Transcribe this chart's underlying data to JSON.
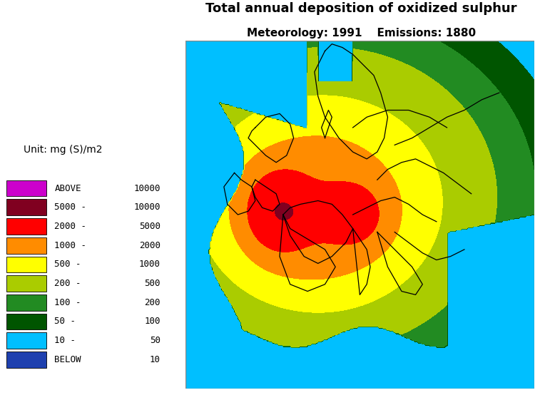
{
  "title_line1": "Total annual deposition of oxidized sulphur",
  "title_line2": "Meteorology: 1991    Emissions: 1880",
  "unit_text": "Unit: mg (S)/m2",
  "legend_colors": [
    "#CC00CC",
    "#800020",
    "#FF0000",
    "#FF8C00",
    "#FFFF00",
    "#AACC00",
    "#228B22",
    "#005500",
    "#00BFFF",
    "#1E40AF"
  ],
  "legend_labels_left": [
    "ABOVE",
    "5000 -",
    "2000 -",
    "1000 -",
    "500 -",
    "200 -",
    "100 -",
    "50 -",
    "10 -",
    "BELOW"
  ],
  "legend_labels_right": [
    "10000",
    "10000",
    "5000",
    "2000",
    "1000",
    "500",
    "200",
    "100",
    "50",
    "10"
  ],
  "title_fontsize": 13,
  "subtitle_fontsize": 11
}
